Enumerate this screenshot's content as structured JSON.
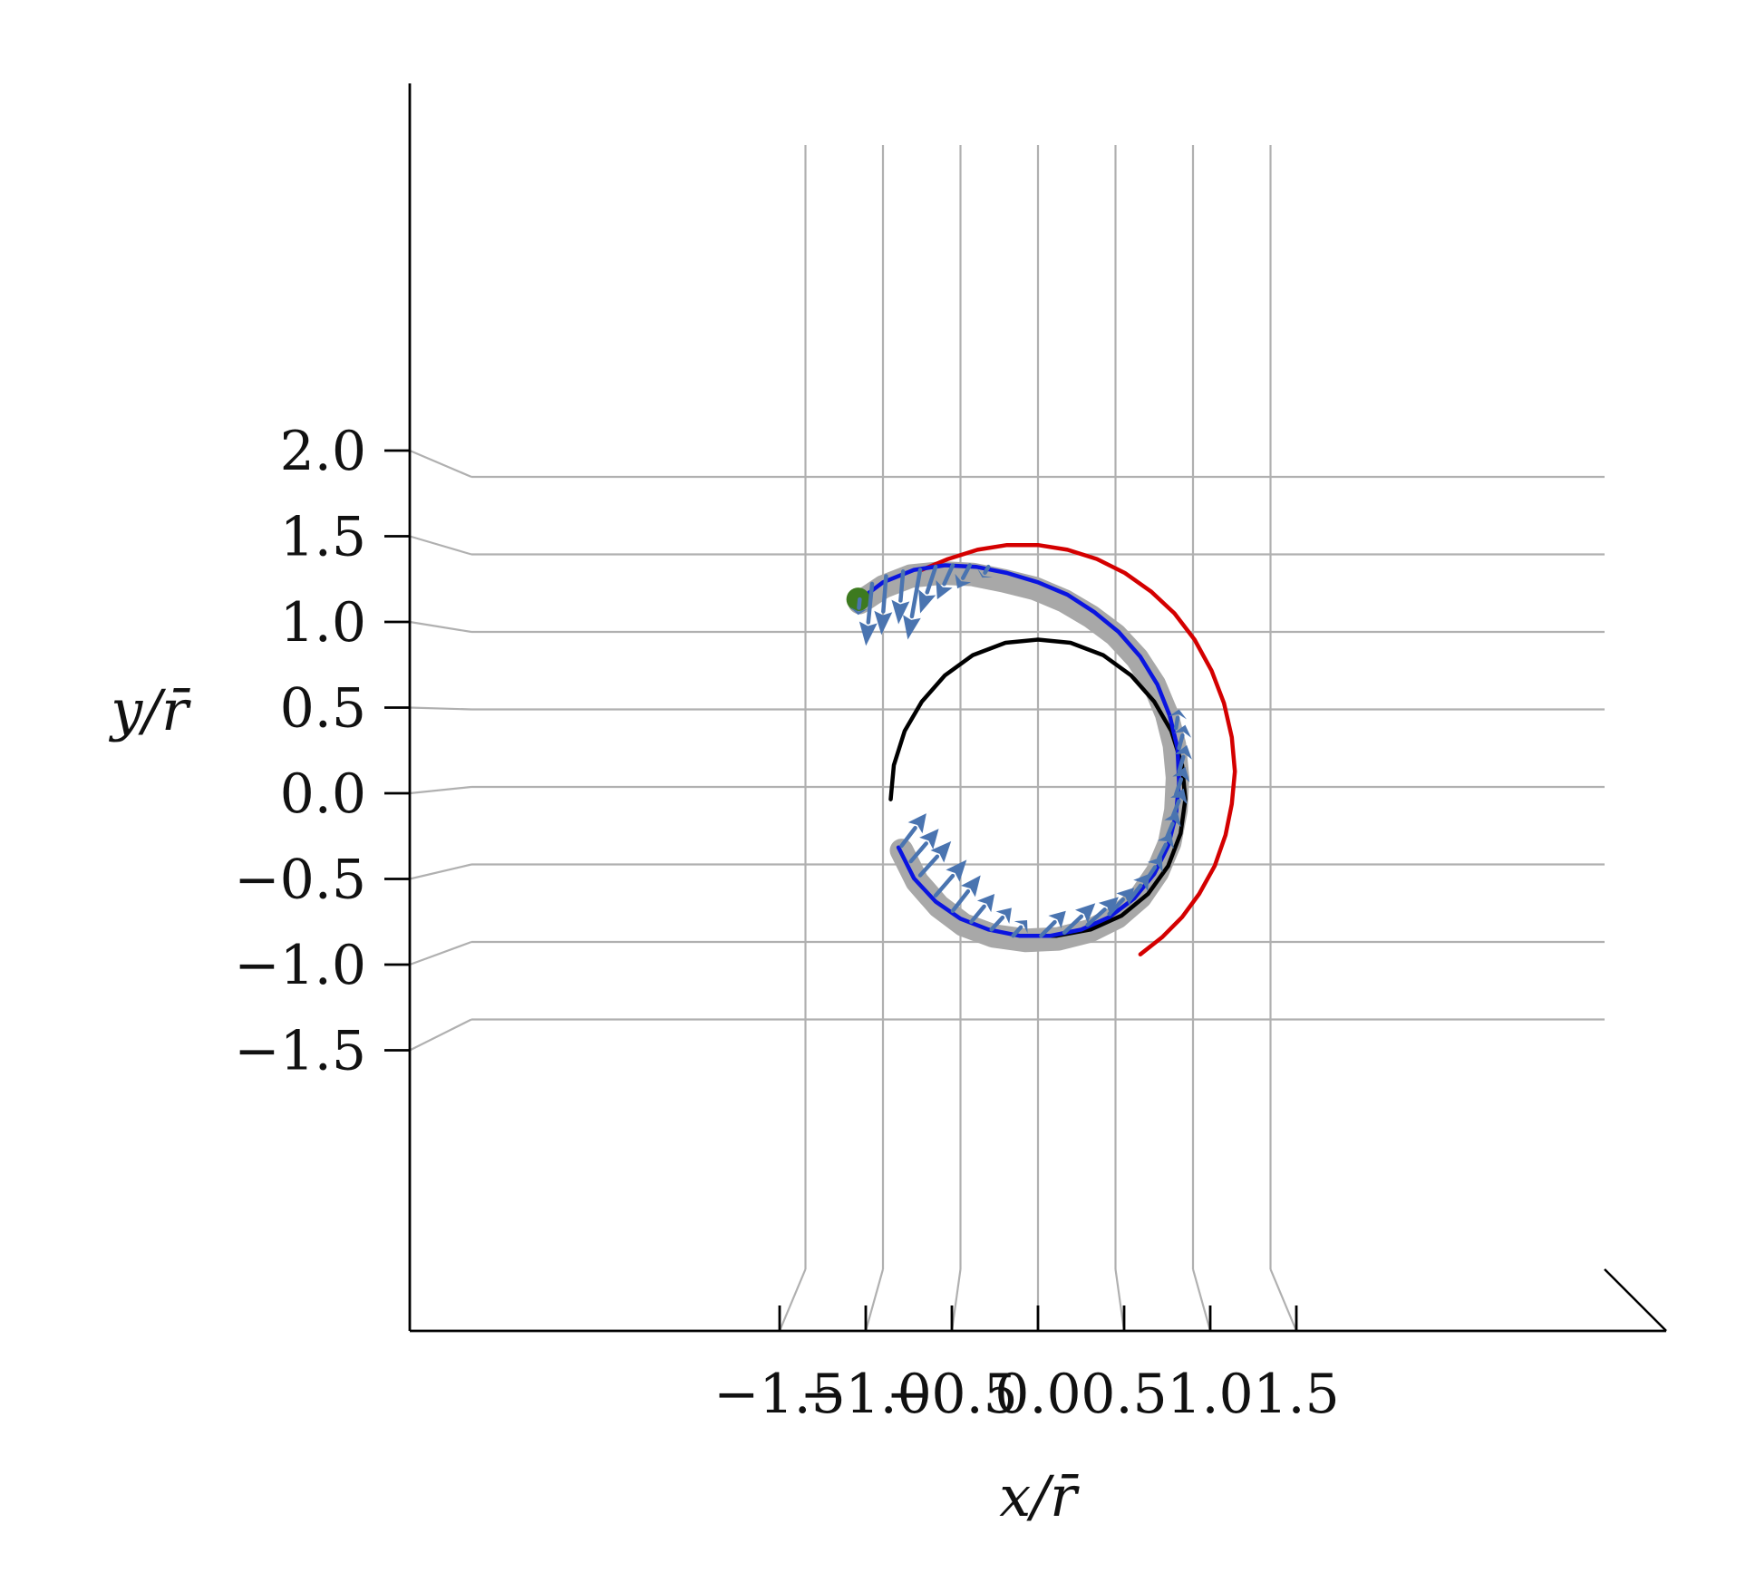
{
  "chart_data": {
    "type": "line",
    "title": "",
    "xlabel": "x/r̄",
    "ylabel": "y/r̄",
    "x_ticks": [
      "−1.5",
      "−1.0",
      "−0.5",
      "0.0",
      "0.5",
      "1.0",
      "1.5"
    ],
    "y_ticks": [
      "−1.5",
      "−1.0",
      "−0.5",
      "0.0",
      "0.5",
      "1.0",
      "1.5",
      "2.0"
    ],
    "x_tick_values": [
      -1.5,
      -1.0,
      -0.5,
      0.0,
      0.5,
      1.0,
      1.5
    ],
    "y_tick_values": [
      -1.5,
      -1.0,
      -0.5,
      0.0,
      0.5,
      1.0,
      1.5,
      2.0
    ],
    "xlim": [
      -1.8,
      1.8
    ],
    "ylim": [
      -1.5,
      2.0
    ],
    "grid": true,
    "legend": "none",
    "colors": {
      "blue_path": "#0a14e0",
      "red_path": "#d40000",
      "black_path": "#000000",
      "grey_band": "#a8a8a8",
      "arrows": "#4a74b0",
      "start_marker": "#3d7a1f",
      "grid": "#b0b0b0"
    },
    "series": [
      {
        "kind": "red-arc",
        "points": [
          [
            0.66,
            -1.08
          ],
          [
            0.8,
            -0.97
          ],
          [
            0.93,
            -0.84
          ],
          [
            1.04,
            -0.69
          ],
          [
            1.14,
            -0.51
          ],
          [
            1.21,
            -0.31
          ],
          [
            1.25,
            -0.11
          ],
          [
            1.27,
            0.1
          ],
          [
            1.25,
            0.32
          ],
          [
            1.2,
            0.54
          ],
          [
            1.12,
            0.75
          ],
          [
            1.01,
            0.95
          ],
          [
            0.88,
            1.12
          ],
          [
            0.73,
            1.26
          ],
          [
            0.56,
            1.38
          ],
          [
            0.38,
            1.47
          ],
          [
            0.19,
            1.53
          ],
          [
            0.0,
            1.56
          ],
          [
            -0.2,
            1.56
          ],
          [
            -0.39,
            1.53
          ],
          [
            -0.58,
            1.47
          ],
          [
            -0.75,
            1.4
          ]
        ]
      },
      {
        "kind": "black-arc",
        "points": [
          [
            -0.95,
            -0.08
          ],
          [
            -0.93,
            0.14
          ],
          [
            -0.86,
            0.36
          ],
          [
            -0.75,
            0.55
          ],
          [
            -0.6,
            0.72
          ],
          [
            -0.42,
            0.85
          ],
          [
            -0.21,
            0.93
          ],
          [
            0.0,
            0.95
          ],
          [
            0.21,
            0.93
          ],
          [
            0.42,
            0.85
          ],
          [
            0.6,
            0.72
          ],
          [
            0.75,
            0.55
          ],
          [
            0.86,
            0.36
          ],
          [
            0.93,
            0.14
          ],
          [
            0.95,
            -0.08
          ],
          [
            0.92,
            -0.3
          ],
          [
            0.84,
            -0.51
          ],
          [
            0.71,
            -0.69
          ],
          [
            0.54,
            -0.83
          ],
          [
            0.34,
            -0.92
          ],
          [
            0.12,
            -0.96
          ],
          [
            -0.1,
            -0.96
          ]
        ]
      },
      {
        "kind": "blue-path",
        "points": [
          [
            -0.9,
            -0.39
          ],
          [
            -0.8,
            -0.59
          ],
          [
            -0.66,
            -0.74
          ],
          [
            -0.5,
            -0.85
          ],
          [
            -0.32,
            -0.92
          ],
          [
            -0.12,
            -0.96
          ],
          [
            0.08,
            -0.96
          ],
          [
            0.28,
            -0.92
          ],
          [
            0.46,
            -0.84
          ],
          [
            0.62,
            -0.72
          ],
          [
            0.75,
            -0.56
          ],
          [
            0.84,
            -0.38
          ],
          [
            0.89,
            -0.18
          ],
          [
            0.91,
            0.03
          ],
          [
            0.9,
            0.25
          ],
          [
            0.85,
            0.46
          ],
          [
            0.77,
            0.66
          ],
          [
            0.66,
            0.84
          ],
          [
            0.52,
            1.0
          ],
          [
            0.36,
            1.13
          ],
          [
            0.19,
            1.24
          ],
          [
            0.0,
            1.32
          ],
          [
            -0.2,
            1.38
          ],
          [
            -0.4,
            1.42
          ],
          [
            -0.6,
            1.43
          ],
          [
            -0.8,
            1.4
          ],
          [
            -1.0,
            1.32
          ],
          [
            -1.16,
            1.2
          ]
        ]
      },
      {
        "kind": "grey-band",
        "points": [
          [
            -0.88,
            -0.41
          ],
          [
            -0.78,
            -0.61
          ],
          [
            -0.64,
            -0.77
          ],
          [
            -0.48,
            -0.89
          ],
          [
            -0.29,
            -0.96
          ],
          [
            -0.08,
            -0.99
          ],
          [
            0.13,
            -0.98
          ],
          [
            0.33,
            -0.93
          ],
          [
            0.51,
            -0.84
          ],
          [
            0.66,
            -0.71
          ],
          [
            0.77,
            -0.55
          ],
          [
            0.85,
            -0.36
          ],
          [
            0.89,
            -0.15
          ],
          [
            0.9,
            0.06
          ],
          [
            0.88,
            0.27
          ],
          [
            0.83,
            0.47
          ],
          [
            0.75,
            0.66
          ],
          [
            0.64,
            0.83
          ],
          [
            0.5,
            0.98
          ],
          [
            0.34,
            1.1
          ],
          [
            0.17,
            1.2
          ],
          [
            -0.02,
            1.28
          ],
          [
            -0.22,
            1.33
          ],
          [
            -0.42,
            1.37
          ],
          [
            -0.62,
            1.38
          ],
          [
            -0.82,
            1.36
          ],
          [
            -1.0,
            1.29
          ],
          [
            -1.15,
            1.19
          ]
        ]
      }
    ],
    "arrows": [
      {
        "x": -0.88,
        "y": -0.38,
        "dx": 0.16,
        "dy": 0.21
      },
      {
        "x": -0.82,
        "y": -0.48,
        "dx": 0.18,
        "dy": 0.21
      },
      {
        "x": -0.76,
        "y": -0.57,
        "dx": 0.2,
        "dy": 0.22
      },
      {
        "x": -0.66,
        "y": -0.7,
        "dx": 0.2,
        "dy": 0.23
      },
      {
        "x": -0.55,
        "y": -0.8,
        "dx": 0.18,
        "dy": 0.23
      },
      {
        "x": -0.43,
        "y": -0.87,
        "dx": 0.15,
        "dy": 0.18
      },
      {
        "x": -0.3,
        "y": -0.92,
        "dx": 0.13,
        "dy": 0.14
      },
      {
        "x": -0.16,
        "y": -0.96,
        "dx": 0.09,
        "dy": 0.1
      },
      {
        "x": 0.02,
        "y": -0.96,
        "dx": 0.16,
        "dy": 0.16
      },
      {
        "x": 0.17,
        "y": -0.94,
        "dx": 0.2,
        "dy": 0.19
      },
      {
        "x": 0.32,
        "y": -0.89,
        "dx": 0.2,
        "dy": 0.18
      },
      {
        "x": 0.46,
        "y": -0.82,
        "dx": 0.16,
        "dy": 0.17
      },
      {
        "x": 0.59,
        "y": -0.73,
        "dx": 0.13,
        "dy": 0.17
      },
      {
        "x": 0.7,
        "y": -0.6,
        "dx": 0.1,
        "dy": 0.15
      },
      {
        "x": 0.78,
        "y": -0.46,
        "dx": 0.08,
        "dy": 0.16
      },
      {
        "x": 0.83,
        "y": -0.33,
        "dx": 0.07,
        "dy": 0.17
      },
      {
        "x": 0.87,
        "y": -0.19,
        "dx": 0.07,
        "dy": 0.18
      },
      {
        "x": 0.89,
        "y": -0.05,
        "dx": 0.06,
        "dy": 0.18
      },
      {
        "x": 0.91,
        "y": 0.1,
        "dx": 0.05,
        "dy": 0.17
      },
      {
        "x": 0.91,
        "y": 0.25,
        "dx": 0.04,
        "dy": 0.15
      },
      {
        "x": 0.89,
        "y": 0.38,
        "dx": 0.02,
        "dy": 0.12
      },
      {
        "x": -0.76,
        "y": 1.4,
        "dx": -0.08,
        "dy": -0.45
      },
      {
        "x": -0.87,
        "y": 1.39,
        "dx": -0.03,
        "dy": -0.34
      },
      {
        "x": -0.98,
        "y": 1.36,
        "dx": -0.03,
        "dy": -0.38
      },
      {
        "x": -1.07,
        "y": 1.31,
        "dx": -0.04,
        "dy": -0.4
      },
      {
        "x": -1.15,
        "y": 1.21,
        "dx": -0.01,
        "dy": -0.1
      },
      {
        "x": -0.66,
        "y": 1.42,
        "dx": -0.1,
        "dy": -0.3
      },
      {
        "x": -0.55,
        "y": 1.43,
        "dx": -0.1,
        "dy": -0.22
      },
      {
        "x": -0.44,
        "y": 1.43,
        "dx": -0.08,
        "dy": -0.15
      },
      {
        "x": -0.32,
        "y": 1.42,
        "dx": -0.04,
        "dy": -0.07
      }
    ],
    "start_marker": {
      "x": -1.16,
      "y": 1.21
    }
  }
}
